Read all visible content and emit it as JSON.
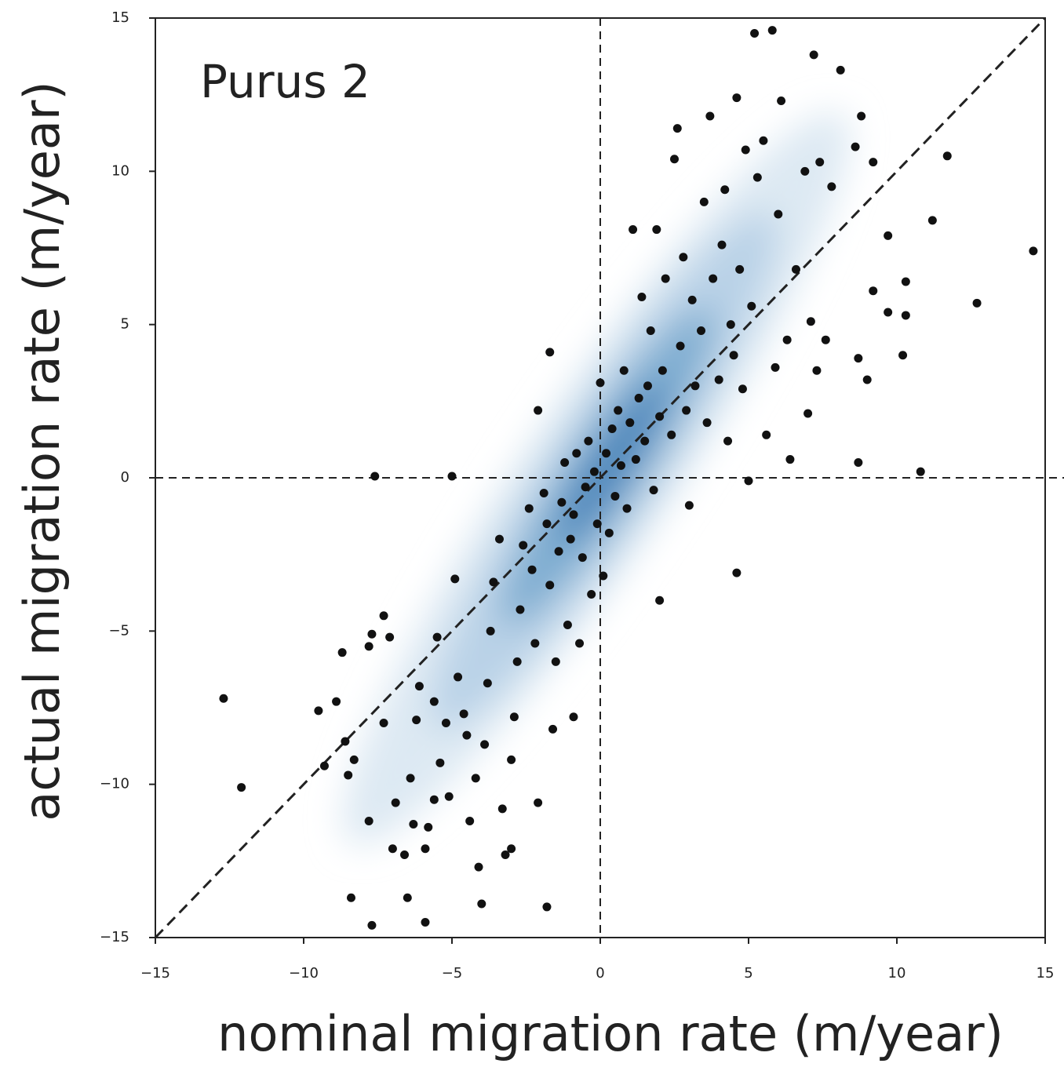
{
  "chart_data": {
    "type": "scatter",
    "title": "Purus 2",
    "xlabel": "nominal migration rate (m/year)",
    "ylabel": "actual migration rate (m/year)",
    "xlim": [
      -15,
      15
    ],
    "ylim": [
      -15,
      15
    ],
    "xticks": [
      {
        "value": -15,
        "label": "−15"
      },
      {
        "value": -10,
        "label": "−10"
      },
      {
        "value": -5,
        "label": "−5"
      },
      0,
      5,
      10,
      15
    ],
    "yticks": [
      {
        "value": -15,
        "label": "−15"
      },
      {
        "value": -10,
        "label": "−10"
      },
      {
        "value": -5,
        "label": "−5"
      },
      0,
      5,
      10,
      15
    ],
    "color": "#111111",
    "x": [
      -12.7,
      -12.1,
      -9.5,
      -9.3,
      -8.9,
      -8.7,
      -8.6,
      -8.5,
      -8.4,
      -8.3,
      -7.8,
      -7.7,
      -7.8,
      -7.7,
      -7.6,
      -7.3,
      -7.1,
      -7.0,
      -7.3,
      -6.9,
      -6.6,
      -6.5,
      -6.3,
      -6.4,
      -6.2,
      -6.1,
      -5.9,
      -5.9,
      -5.8,
      -5.6,
      -5.4,
      -5.2,
      -5.1,
      -5.0,
      -5.5,
      -5.6,
      -4.9,
      -4.8,
      -4.6,
      -4.5,
      -4.4,
      -4.2,
      -4.1,
      -4.0,
      -3.9,
      -3.8,
      -3.7,
      -3.6,
      -3.4,
      -3.3,
      -3.2,
      -3.0,
      -3.0,
      -2.9,
      -2.8,
      -2.7,
      -2.6,
      -2.4,
      -2.3,
      -2.2,
      -2.1,
      -2.1,
      -1.9,
      -1.8,
      -1.7,
      -1.7,
      -1.6,
      -1.8,
      -1.5,
      -1.4,
      -1.3,
      -1.2,
      -1.1,
      -1.0,
      -0.9,
      -0.9,
      -0.8,
      -0.7,
      -0.6,
      -0.5,
      -0.4,
      -0.3,
      -0.2,
      -0.1,
      0,
      0.1,
      0.2,
      0.3,
      0.4,
      0.5,
      0.6,
      0.7,
      0.8,
      0.9,
      1.0,
      1.1,
      1.2,
      1.3,
      1.4,
      1.5,
      1.6,
      1.7,
      1.8,
      1.9,
      2.0,
      2.0,
      2.1,
      2.2,
      2.4,
      2.5,
      2.6,
      2.7,
      2.8,
      2.9,
      3.0,
      3.1,
      3.2,
      3.4,
      3.5,
      3.6,
      3.7,
      3.8,
      4.0,
      4.1,
      4.2,
      4.3,
      4.4,
      4.5,
      4.6,
      4.6,
      4.7,
      4.8,
      4.9,
      5.0,
      5.1,
      5.2,
      5.3,
      5.5,
      5.6,
      5.8,
      5.9,
      6.0,
      6.1,
      6.3,
      6.4,
      6.6,
      6.9,
      7.0,
      7.1,
      7.2,
      7.3,
      7.4,
      7.6,
      7.8,
      8.1,
      8.6,
      8.7,
      8.7,
      8.8,
      9.0,
      9.2,
      9.2,
      9.7,
      9.7,
      10.2,
      10.3,
      10.3,
      10.8,
      11.2,
      11.7,
      12.7,
      14.6
    ],
    "values": [
      -7.2,
      -10.1,
      -7.6,
      -9.4,
      -7.3,
      -5.7,
      -8.6,
      -9.7,
      -13.7,
      -9.2,
      -5.5,
      -5.1,
      -11.2,
      -14.6,
      0.05,
      -4.5,
      -5.2,
      -12.1,
      -8.0,
      -10.6,
      -12.3,
      -13.7,
      -11.3,
      -9.8,
      -7.9,
      -6.8,
      -12.1,
      -14.5,
      -11.4,
      -10.5,
      -9.3,
      -8.0,
      -10.4,
      0.05,
      -5.2,
      -7.3,
      -3.3,
      -6.5,
      -7.7,
      -8.4,
      -11.2,
      -9.8,
      -12.7,
      -13.9,
      -8.7,
      -6.7,
      -5.0,
      -3.4,
      -2.0,
      -10.8,
      -12.3,
      -12.1,
      -9.2,
      -7.8,
      -6.0,
      -4.3,
      -2.2,
      -1.0,
      -3.0,
      -5.4,
      -10.6,
      2.2,
      -0.5,
      -1.5,
      -3.5,
      4.1,
      -8.2,
      -14.0,
      -6.0,
      -2.4,
      -0.8,
      0.5,
      -4.8,
      -2.0,
      -1.2,
      -7.8,
      0.8,
      -5.4,
      -2.6,
      -0.3,
      1.2,
      -3.8,
      0.2,
      -1.5,
      3.1,
      -3.2,
      0.8,
      -1.8,
      1.6,
      -0.6,
      2.2,
      0.4,
      3.5,
      -1.0,
      1.8,
      8.1,
      0.6,
      2.6,
      5.9,
      1.2,
      3.0,
      4.8,
      -0.4,
      8.1,
      2.0,
      -4.0,
      3.5,
      6.5,
      1.4,
      10.4,
      11.4,
      4.3,
      7.2,
      2.2,
      -0.9,
      5.8,
      3.0,
      4.8,
      9.0,
      1.8,
      11.8,
      6.5,
      3.2,
      7.6,
      9.4,
      1.2,
      5.0,
      4.0,
      12.4,
      -3.1,
      6.8,
      2.9,
      10.7,
      -0.1,
      5.6,
      14.5,
      9.8,
      11.0,
      1.4,
      14.6,
      3.6,
      8.6,
      12.3,
      4.5,
      0.6,
      6.8,
      10.0,
      2.1,
      5.1,
      13.8,
      3.5,
      10.3,
      4.5,
      9.5,
      13.3,
      10.8,
      3.9,
      0.5,
      11.8,
      3.2,
      6.1,
      10.3,
      7.9,
      5.4,
      4.0,
      6.4,
      5.3,
      0.2,
      8.4,
      10.5,
      5.7,
      7.4
    ]
  }
}
